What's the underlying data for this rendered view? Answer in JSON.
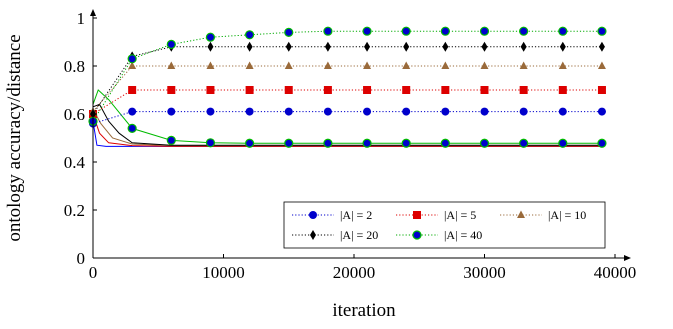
{
  "chart_data": {
    "type": "line",
    "title": "",
    "xlabel": "iteration",
    "ylabel": "ontology accuracy/distance",
    "xlim": [
      0,
      40000
    ],
    "ylim": [
      0,
      1
    ],
    "xticks": [
      0,
      10000,
      20000,
      30000,
      40000
    ],
    "yticks": [
      0,
      0.2,
      0.4,
      0.6,
      0.8,
      1
    ],
    "xtick_labels": [
      "0",
      "10000",
      "20000",
      "30000",
      "40000"
    ],
    "ytick_labels": [
      "0",
      "0.2",
      "0.4",
      "0.6",
      "0.8",
      "1"
    ],
    "grid": false,
    "legend_position": "bottom-right",
    "accuracy_series": [
      {
        "name": "|A| = 2",
        "color": "#0000cc",
        "marker": "circle",
        "x": [
          0,
          3000,
          6000,
          9000,
          12000,
          15000,
          18000,
          21000,
          24000,
          27000,
          30000,
          33000,
          36000,
          39000
        ],
        "values": [
          0.56,
          0.61,
          0.61,
          0.61,
          0.61,
          0.61,
          0.61,
          0.61,
          0.61,
          0.61,
          0.61,
          0.61,
          0.61,
          0.61
        ]
      },
      {
        "name": "|A| = 5",
        "color": "#dd0000",
        "marker": "square",
        "x": [
          0,
          3000,
          6000,
          9000,
          12000,
          15000,
          18000,
          21000,
          24000,
          27000,
          30000,
          33000,
          36000,
          39000
        ],
        "values": [
          0.6,
          0.7,
          0.7,
          0.7,
          0.7,
          0.7,
          0.7,
          0.7,
          0.7,
          0.7,
          0.7,
          0.7,
          0.7,
          0.7
        ]
      },
      {
        "name": "|A| = 10",
        "color": "#9a6a3a",
        "marker": "triangle",
        "x": [
          0,
          3000,
          6000,
          9000,
          12000,
          15000,
          18000,
          21000,
          24000,
          27000,
          30000,
          33000,
          36000,
          39000
        ],
        "values": [
          0.61,
          0.8,
          0.8,
          0.8,
          0.8,
          0.8,
          0.8,
          0.8,
          0.8,
          0.8,
          0.8,
          0.8,
          0.8,
          0.8
        ]
      },
      {
        "name": "|A| = 20",
        "color": "#000000",
        "marker": "diamond",
        "x": [
          0,
          3000,
          6000,
          9000,
          12000,
          15000,
          18000,
          21000,
          24000,
          27000,
          30000,
          33000,
          36000,
          39000
        ],
        "values": [
          0.6,
          0.84,
          0.88,
          0.88,
          0.88,
          0.88,
          0.88,
          0.88,
          0.88,
          0.88,
          0.88,
          0.88,
          0.88,
          0.88
        ]
      },
      {
        "name": "|A| = 40",
        "color": "#0000cc",
        "marker": "circle-green",
        "x": [
          0,
          3000,
          6000,
          9000,
          12000,
          15000,
          18000,
          21000,
          24000,
          27000,
          30000,
          33000,
          36000,
          39000
        ],
        "values": [
          0.57,
          0.83,
          0.89,
          0.92,
          0.93,
          0.94,
          0.945,
          0.945,
          0.945,
          0.945,
          0.945,
          0.945,
          0.945,
          0.945
        ]
      }
    ],
    "distance_series": [
      {
        "color": "#0000ff",
        "x": [
          0,
          300,
          1000,
          3000,
          6000,
          39000
        ],
        "values": [
          0.57,
          0.47,
          0.465,
          0.465,
          0.465,
          0.465
        ]
      },
      {
        "color": "#dd0000",
        "x": [
          0,
          500,
          1200,
          3000,
          6000,
          39000
        ],
        "values": [
          0.6,
          0.52,
          0.48,
          0.468,
          0.465,
          0.465
        ]
      },
      {
        "color": "#9a6a3a",
        "x": [
          0,
          600,
          1500,
          3000,
          6000,
          39000
        ],
        "values": [
          0.62,
          0.56,
          0.5,
          0.475,
          0.468,
          0.468
        ]
      },
      {
        "color": "#000000",
        "x": [
          0,
          500,
          1200,
          2000,
          3000,
          6000,
          39000
        ],
        "values": [
          0.63,
          0.64,
          0.57,
          0.52,
          0.48,
          0.47,
          0.47
        ]
      },
      {
        "color": "#00bb00",
        "marker": "circle-green",
        "x": [
          0,
          400,
          1200,
          3000,
          6000,
          9000,
          12000,
          15000,
          18000,
          21000,
          24000,
          27000,
          30000,
          33000,
          36000,
          39000
        ],
        "values": [
          0.64,
          0.7,
          0.66,
          0.54,
          0.49,
          0.48,
          0.478,
          0.478,
          0.478,
          0.478,
          0.478,
          0.478,
          0.478,
          0.478,
          0.478,
          0.478
        ]
      }
    ]
  }
}
